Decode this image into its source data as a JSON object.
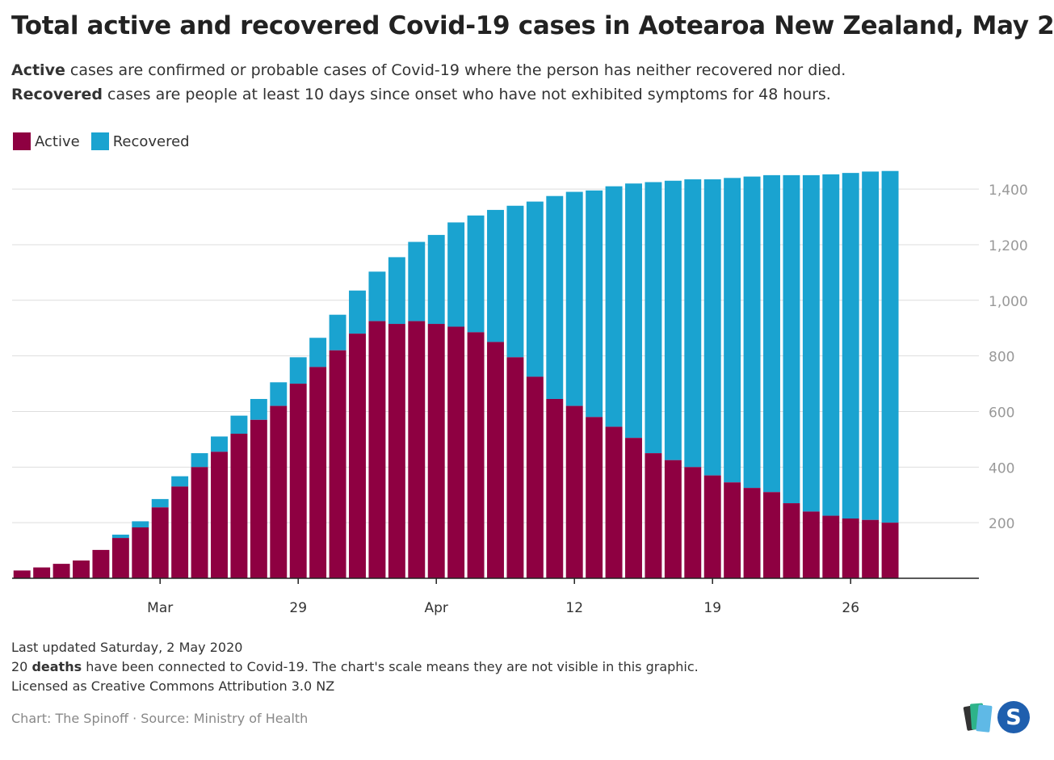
{
  "title": "Total active and recovered Covid-19 cases in Aotearoa New Zealand, May 2",
  "subtitle": {
    "line1_bold": "Active",
    "line1_rest": " cases are confirmed or probable cases of Covid-19 where the person has neither recovered nor died.",
    "line2_bold": "Recovered",
    "line2_rest": " cases are people at least 10 days since onset who have not exhibited symptoms for 48 hours."
  },
  "legend": [
    {
      "label": "Active",
      "color": "#8e0041"
    },
    {
      "label": "Recovered",
      "color": "#1aa3d0"
    }
  ],
  "footer": {
    "updated": "Last updated Saturday, 2 May 2020",
    "deaths_pre": "20 ",
    "deaths_bold": "deaths",
    "deaths_rest": " have been connected to Covid-19. The chart's scale means they are not visible in this graphic.",
    "license": "Licensed as Creative Commons Attribution 3.0 NZ"
  },
  "credit": "Chart: The Spinoff · Source: Ministry of Health",
  "logo_letter": "S",
  "chart_data": {
    "type": "bar",
    "stacked": true,
    "x_start": "2020-03-15",
    "x_end": "2020-05-02",
    "x_tick_labels": [
      {
        "label": "Mar",
        "x": "2020-03-22"
      },
      {
        "label": "29",
        "x": "2020-03-29"
      },
      {
        "label": "Apr",
        "x": "2020-04-05"
      },
      {
        "label": "12",
        "x": "2020-04-12"
      },
      {
        "label": "19",
        "x": "2020-04-19"
      },
      {
        "label": "26",
        "x": "2020-04-26"
      }
    ],
    "ylim": [
      0,
      1470
    ],
    "y_ticks": [
      200,
      400,
      600,
      800,
      1000,
      1200,
      1400
    ],
    "y_tick_labels": [
      "200",
      "400",
      "600",
      "800",
      "1,000",
      "1,200",
      "1,400"
    ],
    "grid": true,
    "y_axis_side": "right",
    "series": [
      {
        "name": "Active",
        "color": "#8e0041",
        "values": [
          28,
          39,
          52,
          64,
          102,
          145,
          183,
          255,
          330,
          400,
          455,
          520,
          570,
          620,
          700,
          760,
          820,
          880,
          925,
          915,
          925,
          915,
          905,
          885,
          850,
          795,
          725,
          645,
          620,
          580,
          545,
          505,
          450,
          425,
          400,
          370,
          345,
          325,
          310,
          270,
          240,
          225,
          215,
          210,
          200
        ]
      },
      {
        "name": "Recovered",
        "color": "#1aa3d0",
        "values": [
          0,
          0,
          0,
          0,
          0,
          12,
          22,
          30,
          37,
          50,
          55,
          65,
          75,
          85,
          95,
          105,
          128,
          155,
          178,
          240,
          285,
          320,
          375,
          420,
          475,
          545,
          630,
          730,
          770,
          815,
          865,
          915,
          975,
          1005,
          1035,
          1065,
          1095,
          1120,
          1140,
          1180,
          1210,
          1228,
          1243,
          1253,
          1265
        ]
      }
    ]
  }
}
